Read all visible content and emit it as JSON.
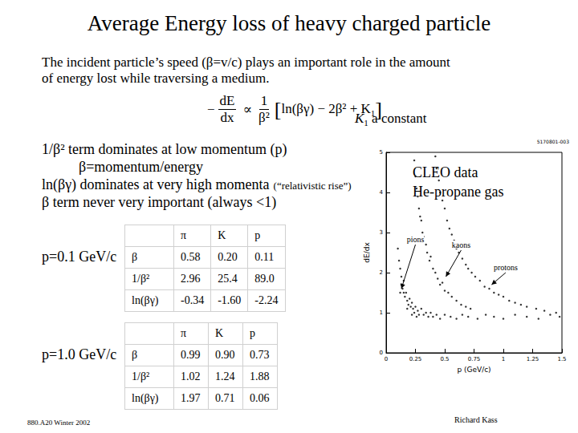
{
  "title": "Average Energy loss of heavy charged particle",
  "intro": [
    "The incident particle’s speed (β=v/c) plays an important role in the amount",
    "of energy lost while traversing a medium."
  ],
  "formula": {
    "sign": "−",
    "lhs": [
      "dE",
      "dx"
    ],
    "relation": "∝",
    "rhs": [
      "1",
      "β²"
    ],
    "open": "[",
    "bracket": [
      "ln(βγ) − 2β² + K",
      "1"
    ],
    "close": "]"
  },
  "constant_note": {
    "symbol": "K",
    "sub": "1",
    "text": "a constant"
  },
  "bullets": [
    {
      "text": "1/β² term dominates at low momentum (p)"
    },
    {
      "text": "β=momentum/energy",
      "indent": true
    },
    {
      "text": "ln(βγ) dominates at very high momenta",
      "note": "(“relativistic rise”)"
    },
    {
      "text": "β term never very important (always <1)"
    }
  ],
  "tables": [
    {
      "label": "p=0.1 GeV/c",
      "header": [
        "",
        "π",
        "K",
        "p"
      ],
      "rows": [
        [
          "β",
          "0.58",
          "0.20",
          "0.11"
        ],
        [
          "1/β²",
          "2.96",
          "25.4",
          "89.0"
        ],
        [
          "ln(βγ)",
          "-0.34",
          "-1.60",
          "-2.24"
        ]
      ]
    },
    {
      "label": "p=1.0 GeV/c",
      "header": [
        "",
        "π",
        "K",
        "p"
      ],
      "rows": [
        [
          "β",
          "0.99",
          "0.90",
          "0.73"
        ],
        [
          "1/β²",
          "1.02",
          "1.24",
          "1.88"
        ],
        [
          "ln(βγ)",
          "1.97",
          "0.71",
          "0.06"
        ]
      ]
    }
  ],
  "plot_caption": [
    "CLEO data",
    "He-propane gas"
  ],
  "footer_left": "880.A20 Winter 2002",
  "footer_right": "Richard Kass",
  "chart_data": {
    "type": "scatter",
    "plot_id": "5170801-003",
    "x_label": "p (GeV/c)",
    "y_label": "dE/dx",
    "xlim": [
      0,
      1.5
    ],
    "xticks": [
      0,
      0.25,
      0.5,
      0.75,
      1,
      1.25,
      1.5
    ],
    "ylim": [
      0,
      5
    ],
    "yticks": [
      0,
      1,
      2,
      3,
      4,
      5
    ],
    "grid": false,
    "series": [
      {
        "name": "pions",
        "color": "#000000",
        "x": [
          0.1,
          0.11,
          0.12,
          0.12,
          0.13,
          0.13,
          0.14,
          0.15,
          0.15,
          0.16,
          0.17,
          0.18,
          0.18,
          0.19,
          0.2,
          0.21,
          0.22,
          0.22,
          0.23,
          0.24,
          0.25,
          0.26,
          0.27,
          0.28,
          0.3,
          0.32,
          0.34,
          0.36,
          0.38,
          0.4,
          0.43,
          0.46,
          0.5,
          0.55,
          0.6,
          0.65,
          0.7,
          0.78,
          0.85,
          0.92,
          1.0,
          1.1,
          1.2,
          1.3,
          1.4,
          1.48
        ],
        "values": [
          2.6,
          2.3,
          2.1,
          1.5,
          1.9,
          1.7,
          1.6,
          1.8,
          1.5,
          1.4,
          1.5,
          1.3,
          1.1,
          1.2,
          1.35,
          1.15,
          1.25,
          0.95,
          1.1,
          1.0,
          1.15,
          0.9,
          1.05,
          0.95,
          1.1,
          0.95,
          1.0,
          0.9,
          1.0,
          0.9,
          0.95,
          0.85,
          0.95,
          0.9,
          0.85,
          0.95,
          0.9,
          0.85,
          0.95,
          0.9,
          0.85,
          0.95,
          0.9,
          0.85,
          0.95,
          0.9
        ]
      },
      {
        "name": "kaons",
        "color": "#000000",
        "x": [
          0.24,
          0.25,
          0.26,
          0.27,
          0.28,
          0.29,
          0.3,
          0.31,
          0.32,
          0.34,
          0.35,
          0.37,
          0.38,
          0.4,
          0.42,
          0.44,
          0.46,
          0.48,
          0.5,
          0.53,
          0.56,
          0.6,
          0.64,
          0.68,
          0.72
        ],
        "values": [
          4.8,
          4.4,
          4.1,
          3.9,
          3.6,
          3.4,
          3.3,
          3.0,
          2.9,
          2.7,
          2.5,
          2.3,
          2.4,
          2.1,
          2.0,
          1.85,
          1.7,
          1.75,
          1.55,
          1.5,
          1.4,
          1.3,
          1.2,
          1.15,
          1.1
        ]
      },
      {
        "name": "protons",
        "color": "#000000",
        "x": [
          0.42,
          0.43,
          0.45,
          0.46,
          0.48,
          0.5,
          0.52,
          0.54,
          0.56,
          0.58,
          0.6,
          0.62,
          0.65,
          0.68,
          0.7,
          0.73,
          0.76,
          0.8,
          0.84,
          0.88,
          0.92,
          0.96,
          1.0,
          1.05,
          1.1,
          1.15,
          1.2,
          1.28,
          1.35,
          1.45
        ],
        "values": [
          4.9,
          4.6,
          4.3,
          4.0,
          3.8,
          3.6,
          3.3,
          3.1,
          2.95,
          2.8,
          2.6,
          2.5,
          2.35,
          2.2,
          2.1,
          2.0,
          1.9,
          1.8,
          1.65,
          1.6,
          1.5,
          1.45,
          1.4,
          1.3,
          1.25,
          1.2,
          1.15,
          1.1,
          1.05,
          1.0
        ]
      }
    ],
    "annotations": [
      {
        "text": "pions",
        "x": 0.25,
        "y": 2.74,
        "arrow_to": [
          0.13,
          1.6
        ]
      },
      {
        "text": "kaons",
        "x": 0.64,
        "y": 2.6,
        "arrow_to": [
          0.51,
          1.9
        ]
      },
      {
        "text": "protons",
        "x": 1.02,
        "y": 2.04,
        "arrow_to": [
          0.9,
          1.7
        ]
      }
    ]
  }
}
